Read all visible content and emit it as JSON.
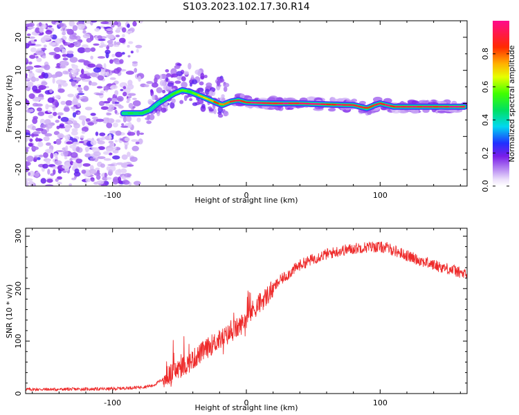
{
  "title": "S103.2023.102.17.30.R14",
  "colors": {
    "snr_line": "#ee2b2b",
    "axis": "#000000"
  },
  "chart_data": [
    {
      "type": "heatmap",
      "name": "spectrogram",
      "xlabel": "Height of straight line (km)",
      "ylabel": "Frequency (Hz)",
      "xlim": [
        -165,
        165
      ],
      "ylim": [
        -25,
        25
      ],
      "xticks": [
        -100,
        0,
        100
      ],
      "xtick_labels": [
        "-100",
        "0",
        "100"
      ],
      "yticks": [
        -20,
        -10,
        0,
        10,
        20
      ],
      "ytick_labels": [
        "-20",
        "-10",
        "0",
        "10",
        "20"
      ],
      "noise_region_x": [
        -165,
        -80
      ],
      "ridge": [
        {
          "x": -92,
          "f": -3.0,
          "a": 0.45
        },
        {
          "x": -85,
          "f": -3.0,
          "a": 0.5
        },
        {
          "x": -78,
          "f": -3.0,
          "a": 0.55
        },
        {
          "x": -72,
          "f": -2.0,
          "a": 0.4
        },
        {
          "x": -66,
          "f": 0.0,
          "a": 0.45
        },
        {
          "x": -60,
          "f": 1.5,
          "a": 0.5
        },
        {
          "x": -54,
          "f": 3.0,
          "a": 0.5
        },
        {
          "x": -48,
          "f": 4.0,
          "a": 0.55
        },
        {
          "x": -42,
          "f": 3.5,
          "a": 0.6
        },
        {
          "x": -36,
          "f": 2.5,
          "a": 0.7
        },
        {
          "x": -30,
          "f": 1.5,
          "a": 0.75
        },
        {
          "x": -24,
          "f": 0.5,
          "a": 0.8
        },
        {
          "x": -18,
          "f": -0.5,
          "a": 0.8
        },
        {
          "x": -12,
          "f": 0.5,
          "a": 0.85
        },
        {
          "x": -6,
          "f": 1.0,
          "a": 0.9
        },
        {
          "x": 0,
          "f": 0.3,
          "a": 0.95
        },
        {
          "x": 20,
          "f": 0.0,
          "a": 0.95
        },
        {
          "x": 40,
          "f": 0.0,
          "a": 0.95
        },
        {
          "x": 60,
          "f": -0.3,
          "a": 0.95
        },
        {
          "x": 80,
          "f": -0.5,
          "a": 0.95
        },
        {
          "x": 90,
          "f": -1.5,
          "a": 0.9
        },
        {
          "x": 96,
          "f": -0.5,
          "a": 0.9
        },
        {
          "x": 100,
          "f": 0.0,
          "a": 0.9
        },
        {
          "x": 110,
          "f": -1.0,
          "a": 0.95
        },
        {
          "x": 130,
          "f": -1.0,
          "a": 0.95
        },
        {
          "x": 150,
          "f": -1.0,
          "a": 0.95
        },
        {
          "x": 163,
          "f": -1.0,
          "a": 0.95
        }
      ],
      "colorbar": {
        "label": "Normalized spectral amplitude",
        "range": [
          0,
          1
        ],
        "ticks": [
          0.0,
          0.2,
          0.4,
          0.6,
          0.8
        ],
        "tick_labels": [
          "0.0",
          "0.2",
          "0.4",
          "0.6",
          "0.8"
        ]
      }
    },
    {
      "type": "line",
      "name": "snr",
      "xlabel": "Height of straight line (km)",
      "ylabel": "SNR (10 * v/v)",
      "xlim": [
        -165,
        165
      ],
      "ylim": [
        0,
        315
      ],
      "xticks": [
        -100,
        0,
        100
      ],
      "xtick_labels": [
        "-100",
        "0",
        "100"
      ],
      "yticks": [
        0,
        100,
        200,
        300
      ],
      "ytick_labels": [
        "0",
        "100",
        "200",
        "300"
      ],
      "envelope": {
        "x": [
          -165,
          -140,
          -100,
          -80,
          -70,
          -62,
          -55,
          -45,
          -35,
          -25,
          -15,
          -5,
          5,
          15,
          25,
          40,
          55,
          70,
          85,
          95,
          105,
          115,
          125,
          140,
          155,
          165
        ],
        "y": [
          8,
          8,
          9,
          12,
          15,
          28,
          40,
          55,
          75,
          95,
          110,
          128,
          160,
          185,
          215,
          245,
          262,
          272,
          278,
          280,
          278,
          268,
          258,
          245,
          235,
          225
        ]
      },
      "noise_amplitude": 10
    }
  ]
}
